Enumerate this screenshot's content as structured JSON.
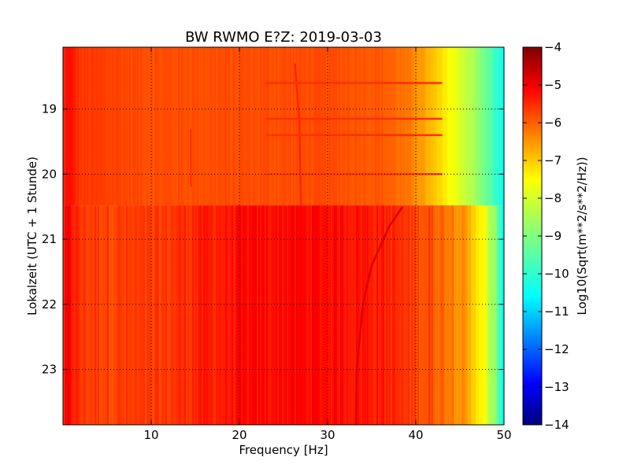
{
  "chart_data": {
    "type": "heatmap",
    "title": "BW RWMO E?Z: 2019-03-03",
    "xlabel": "Frequency [Hz]",
    "ylabel": "Lokalzeit (UTC + 1 Stunde)",
    "xlim": [
      0,
      50
    ],
    "ylim": [
      23.85,
      18.05
    ],
    "x_ticks": [
      10,
      20,
      30,
      40,
      50
    ],
    "y_ticks": [
      19,
      20,
      21,
      22,
      23
    ],
    "grid": true,
    "colorbar": {
      "label": "Log10(Sqrt(m**2/s**2/Hz))",
      "range": [
        -14,
        -4
      ],
      "ticks": [
        -4,
        -5,
        -6,
        -7,
        -8,
        -9,
        -10,
        -11,
        -12,
        -13,
        -14
      ],
      "colormap": "jet"
    },
    "data_change_time": 20.48,
    "spectrum_before": {
      "frequency": [
        0,
        0.5,
        2,
        10,
        20,
        25,
        30,
        36,
        38,
        40,
        42,
        44,
        45,
        46,
        47,
        48,
        49,
        50
      ],
      "level": [
        -5.8,
        -5.3,
        -5.8,
        -6.0,
        -6.0,
        -6.0,
        -6.0,
        -6.1,
        -6.3,
        -6.6,
        -7.2,
        -7.8,
        -8.1,
        -8.4,
        -8.8,
        -9.2,
        -9.7,
        -10.2
      ]
    },
    "spectrum_after": {
      "frequency": [
        0,
        0.5,
        2,
        10,
        15,
        20,
        25,
        30,
        33,
        36,
        40,
        42,
        44,
        45,
        46,
        47,
        48,
        49,
        50
      ],
      "level": [
        -5.8,
        -5.2,
        -5.8,
        -5.9,
        -5.6,
        -5.4,
        -5.3,
        -5.3,
        -5.4,
        -5.5,
        -5.9,
        -6.1,
        -6.4,
        -6.6,
        -7.0,
        -7.4,
        -8.1,
        -9.0,
        -10.2
      ]
    },
    "features": [
      {
        "type": "drifting_line",
        "points": [
          [
            38.5,
            20.5
          ],
          [
            37,
            20.8
          ],
          [
            35,
            21.4
          ],
          [
            34,
            22.0
          ],
          [
            33.3,
            23.0
          ],
          [
            33.2,
            23.85
          ]
        ],
        "level": -4.9
      },
      {
        "type": "drifting_line",
        "points": [
          [
            26.3,
            18.3
          ],
          [
            26.8,
            19.2
          ],
          [
            27.0,
            20.5
          ]
        ],
        "level": -5.6
      },
      {
        "type": "line",
        "frequency": 41.5,
        "from": 20.5,
        "to": 23.85,
        "level": -5.6
      },
      {
        "type": "line",
        "frequency": 14.5,
        "from": 19.3,
        "to": 20.2,
        "level": -5.6
      },
      {
        "type": "hline",
        "time": 18.6,
        "from": 23,
        "to": 43,
        "level": -5.7
      },
      {
        "type": "hline",
        "time": 19.15,
        "from": 23,
        "to": 43,
        "level": -5.7
      },
      {
        "type": "hline",
        "time": 19.4,
        "from": 23,
        "to": 43,
        "level": -5.7
      },
      {
        "type": "hline",
        "time": 20.0,
        "from": 23,
        "to": 43,
        "level": -5.8
      }
    ]
  }
}
